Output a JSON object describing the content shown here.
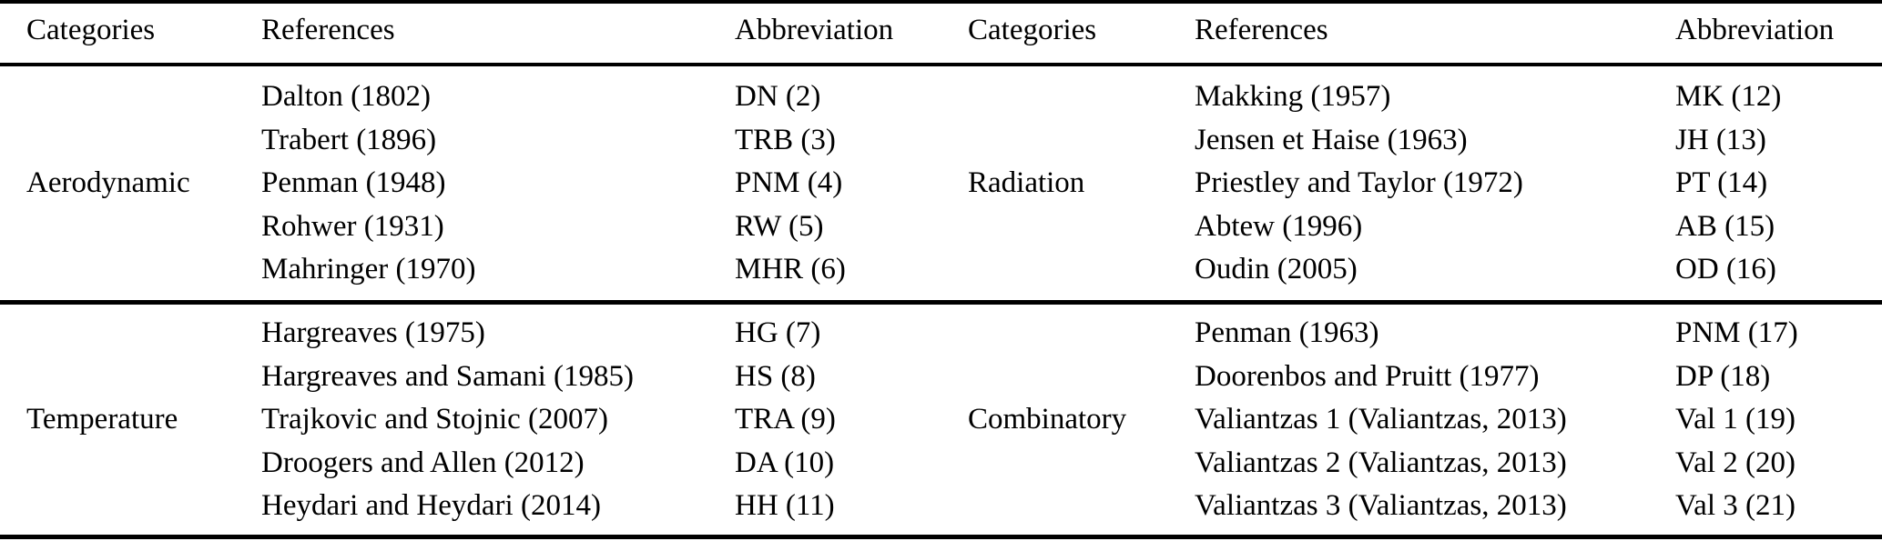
{
  "colors": {
    "text": "#000000",
    "background": "#ffffff",
    "rule": "#000000"
  },
  "table": {
    "headers": {
      "categories": "Categories",
      "references": "References",
      "abbreviation": "Abbreviation"
    },
    "left": {
      "blocks": [
        {
          "category": "Aerodynamic",
          "rows": [
            {
              "ref": "Dalton (1802)",
              "abbr": "DN (2)"
            },
            {
              "ref": "Trabert (1896)",
              "abbr": "TRB (3)"
            },
            {
              "ref": "Penman (1948)",
              "abbr": "PNM (4)"
            },
            {
              "ref": "Rohwer (1931)",
              "abbr": "RW (5)"
            },
            {
              "ref": "Mahringer (1970)",
              "abbr": "MHR (6)"
            }
          ]
        },
        {
          "category": "Temperature",
          "rows": [
            {
              "ref": "Hargreaves (1975)",
              "abbr": "HG (7)"
            },
            {
              "ref": "Hargreaves and Samani (1985)",
              "abbr": "HS (8)"
            },
            {
              "ref": "Trajkovic and Stojnic (2007)",
              "abbr": "TRA (9)"
            },
            {
              "ref": "Droogers and Allen (2012)",
              "abbr": "DA (10)"
            },
            {
              "ref": "Heydari and Heydari (2014)",
              "abbr": "HH (11)"
            }
          ]
        }
      ]
    },
    "right": {
      "blocks": [
        {
          "category": "Radiation",
          "rows": [
            {
              "ref": "Makking (1957)",
              "abbr": "MK (12)"
            },
            {
              "ref": "Jensen et Haise (1963)",
              "abbr": "JH (13)"
            },
            {
              "ref": "Priestley and Taylor (1972)",
              "abbr": "PT (14)"
            },
            {
              "ref": "Abtew (1996)",
              "abbr": "AB (15)"
            },
            {
              "ref": "Oudin (2005)",
              "abbr": "OD (16)"
            }
          ]
        },
        {
          "category": "Combinatory",
          "rows": [
            {
              "ref": "Penman (1963)",
              "abbr": "PNM (17)"
            },
            {
              "ref": "Doorenbos and Pruitt (1977)",
              "abbr": "DP (18)"
            },
            {
              "ref": "Valiantzas 1 (Valiantzas, 2013)",
              "abbr": "Val 1 (19)"
            },
            {
              "ref": "Valiantzas 2 (Valiantzas, 2013)",
              "abbr": "Val 2 (20)"
            },
            {
              "ref": "Valiantzas 3 (Valiantzas, 2013)",
              "abbr": "Val 3 (21)"
            }
          ]
        }
      ]
    }
  }
}
